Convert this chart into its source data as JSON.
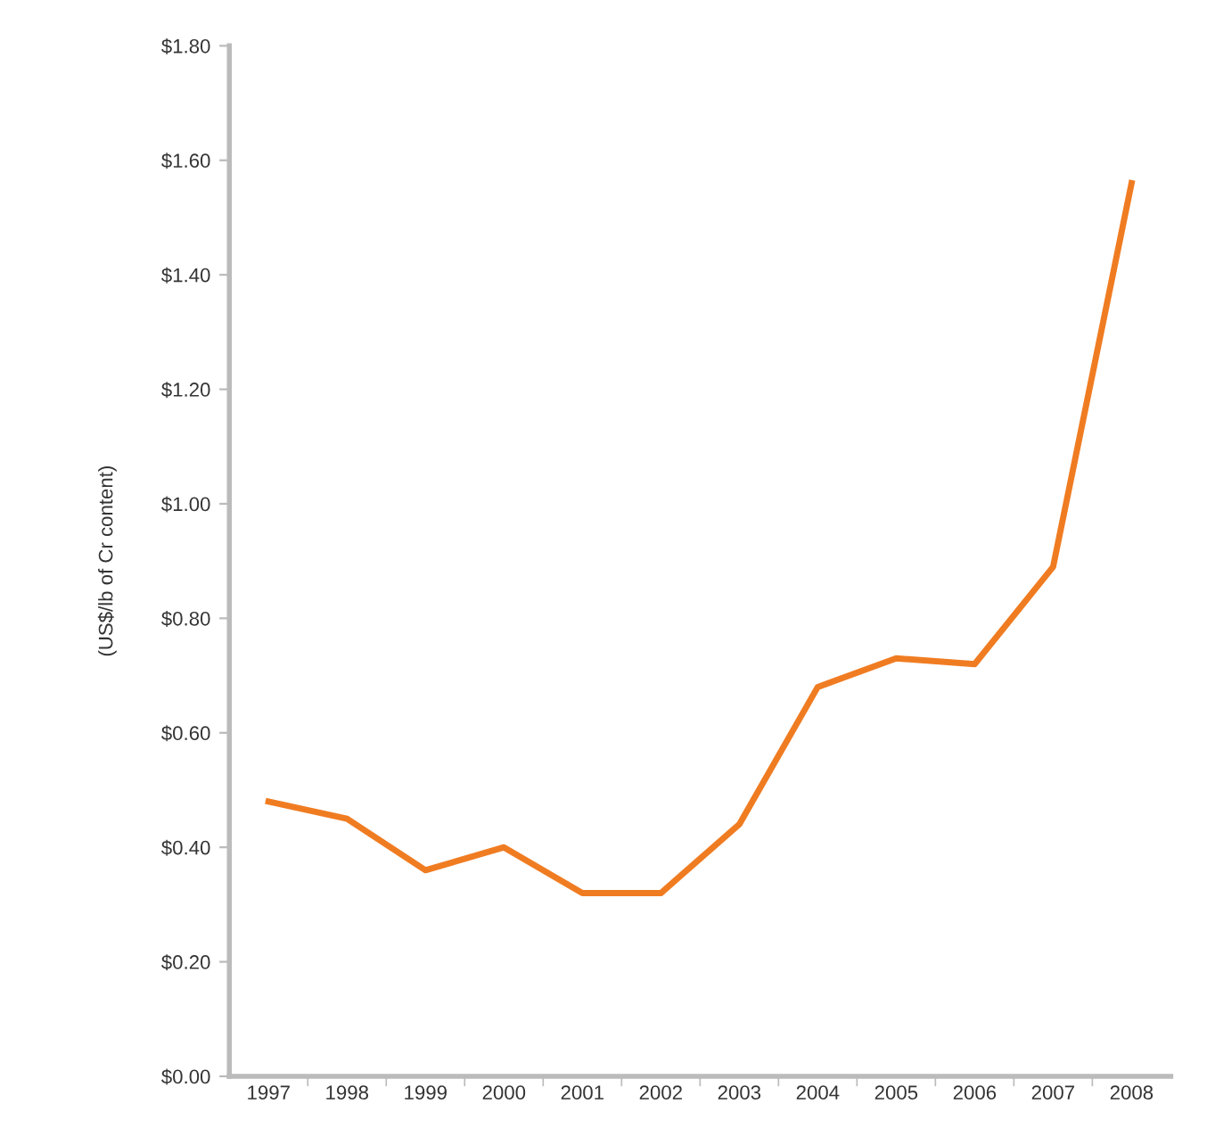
{
  "chart_data": {
    "type": "line",
    "ylabel": "(US$/lb of Cr content)",
    "categories": [
      "1997",
      "1998",
      "1999",
      "2000",
      "2001",
      "2002",
      "2003",
      "2004",
      "2005",
      "2006",
      "2007",
      "2008"
    ],
    "series": [
      {
        "color": "#f07c22",
        "values": [
          0.48,
          0.45,
          0.36,
          0.4,
          0.32,
          0.32,
          0.44,
          0.68,
          0.73,
          0.72,
          0.89,
          1.56
        ]
      }
    ],
    "ylim": [
      0,
      1.8
    ],
    "yticks": [
      {
        "value": 0,
        "label": "$0.00"
      },
      {
        "value": 0.2,
        "label": "$0.20"
      },
      {
        "value": 0.4,
        "label": "$0.40"
      },
      {
        "value": 0.6,
        "label": "$0.60"
      },
      {
        "value": 0.8,
        "label": "$0.80"
      },
      {
        "value": 1.0,
        "label": "$1.00"
      },
      {
        "value": 1.2,
        "label": "$1.20"
      },
      {
        "value": 1.4,
        "label": "$1.40"
      },
      {
        "value": 1.6,
        "label": "$1.60"
      },
      {
        "value": 1.8,
        "label": "$1.80"
      }
    ],
    "grid": false,
    "marker": "none",
    "line_style": "solid"
  }
}
